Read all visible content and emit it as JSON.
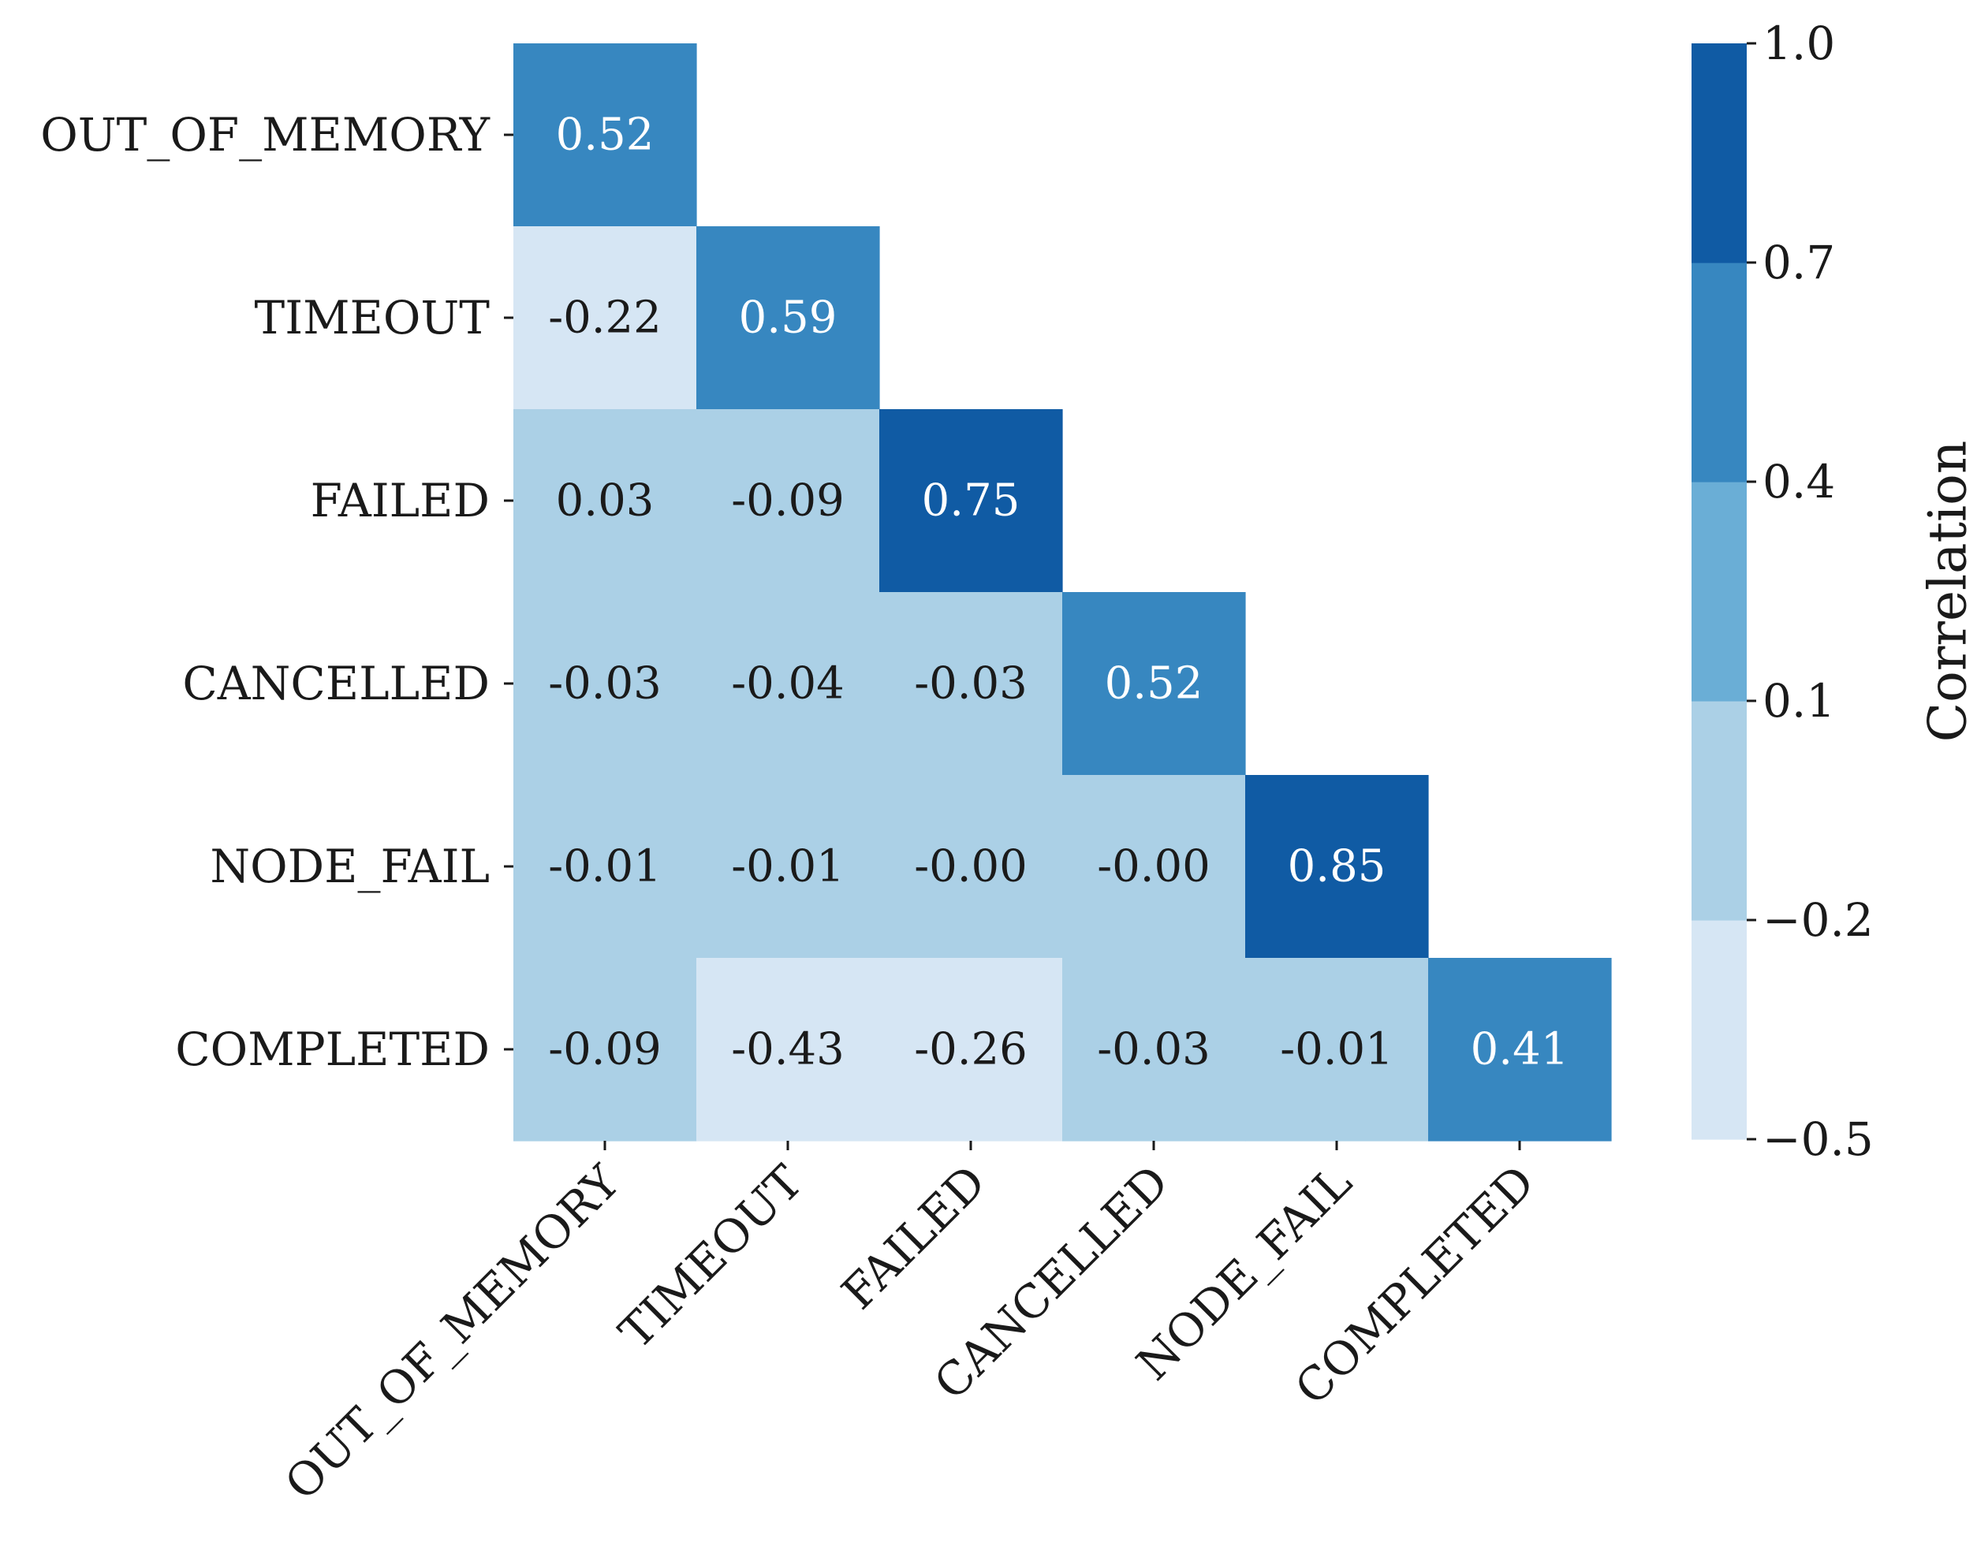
{
  "chart_data": {
    "type": "heatmap",
    "mask": "lower-triangle including diagonal",
    "rows": [
      "OUT_OF_MEMORY",
      "TIMEOUT",
      "FAILED",
      "CANCELLED",
      "NODE_FAIL",
      "COMPLETED"
    ],
    "columns": [
      "OUT_OF_MEMORY",
      "TIMEOUT",
      "FAILED",
      "CANCELLED",
      "NODE_FAIL",
      "COMPLETED"
    ],
    "values": [
      [
        0.52,
        null,
        null,
        null,
        null,
        null
      ],
      [
        -0.22,
        0.59,
        null,
        null,
        null,
        null
      ],
      [
        0.03,
        -0.09,
        0.75,
        null,
        null,
        null
      ],
      [
        -0.03,
        -0.04,
        -0.03,
        0.52,
        null,
        null
      ],
      [
        -0.01,
        -0.01,
        -0.0,
        -0.0,
        0.85,
        null
      ],
      [
        -0.09,
        -0.43,
        -0.26,
        -0.03,
        -0.01,
        0.41
      ]
    ],
    "cell_labels": [
      [
        "0.52",
        "",
        "",
        "",
        "",
        ""
      ],
      [
        "-0.22",
        "0.59",
        "",
        "",
        "",
        ""
      ],
      [
        "0.03",
        "-0.09",
        "0.75",
        "",
        "",
        ""
      ],
      [
        "-0.03",
        "-0.04",
        "-0.03",
        "0.52",
        "",
        ""
      ],
      [
        "-0.01",
        "-0.01",
        "-0.00",
        "-0.00",
        "0.85",
        ""
      ],
      [
        "-0.09",
        "-0.43",
        "-0.26",
        "-0.03",
        "-0.01",
        "0.41"
      ]
    ],
    "colorbar": {
      "label": "Correlation",
      "boundaries": [
        -0.5,
        -0.2,
        0.1,
        0.4,
        0.7,
        1.0
      ],
      "tick_labels": [
        "−0.5",
        "−0.2",
        "0.1",
        "0.4",
        "0.7",
        "1.0"
      ],
      "colors": [
        "#d6e6f4",
        "#abd0e6",
        "#6aaed6",
        "#3787c0",
        "#105ba4"
      ]
    },
    "text_colors": {
      "dark": "#1a1a1a",
      "light": "#ffffff"
    },
    "light_text_threshold": 0.4
  }
}
